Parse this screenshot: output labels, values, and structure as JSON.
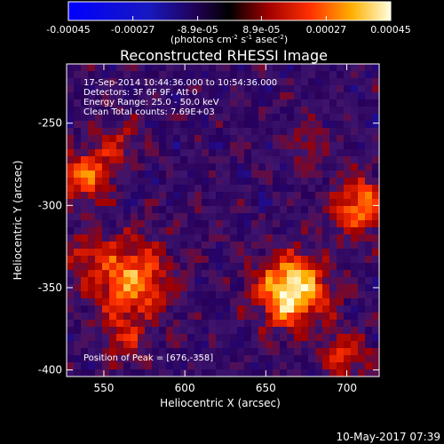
{
  "chart_data": {
    "type": "heatmap",
    "title": "Reconstructed RHESSI Image",
    "xlabel": "Heliocentric X (arcsec)",
    "ylabel": "Heliocentric Y (arcsec)",
    "xlim": [
      527,
      720
    ],
    "ylim": [
      -404,
      -214
    ],
    "x_ticks": [
      550,
      600,
      650,
      700
    ],
    "y_ticks": [
      -250,
      -300,
      -350,
      -400
    ],
    "colorbar": {
      "range": [
        -0.00045,
        0.00045
      ],
      "ticks": [
        "-0.00045",
        "-0.00027",
        "-8.9e-05",
        "8.9e-05",
        "0.00027",
        "0.00045"
      ],
      "unit_prefix": "(photons cm",
      "unit_exp1": "-2",
      "unit_mid": " s",
      "unit_exp2": "-1",
      "unit_mid2": " asec",
      "unit_exp3": "-2",
      "unit_suffix": ")"
    },
    "annotations": [
      "17-Sep-2014 10:44:36.000 to 10:54:36.000",
      "Detectors: 3F 6F 9F, Att 0",
      "Energy Range: 25.0 - 50.0 keV",
      "Clean    Total counts: 7.69E+03"
    ],
    "peak_label": "Position of Peak = [676,-358]",
    "peak": [
      676,
      -358
    ],
    "grid": false,
    "sources": [
      {
        "x": 666,
        "y": -352,
        "amp": 1.0,
        "sigma": 15
      },
      {
        "x": 566,
        "y": -345,
        "amp": 0.72,
        "sigma": 17
      },
      {
        "x": 708,
        "y": -300,
        "amp": 0.65,
        "sigma": 13
      },
      {
        "x": 538,
        "y": -283,
        "amp": 0.62,
        "sigma": 11
      },
      {
        "x": 700,
        "y": -392,
        "amp": 0.42,
        "sigma": 11
      },
      {
        "x": 558,
        "y": -262,
        "amp": 0.36,
        "sigma": 10
      },
      {
        "x": 562,
        "y": -382,
        "amp": 0.32,
        "sigma": 10
      },
      {
        "x": 676,
        "y": -262,
        "amp": 0.28,
        "sigma": 9
      },
      {
        "x": 538,
        "y": -330,
        "amp": 0.3,
        "sigma": 9
      }
    ]
  },
  "footer": {
    "timestamp": "10-May-2017 07:39"
  }
}
